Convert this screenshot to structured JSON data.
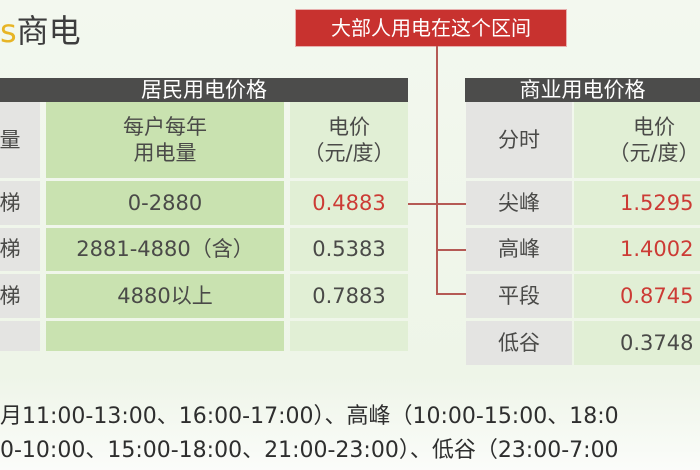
{
  "title": {
    "prefix": "s",
    "main": "商电"
  },
  "callout": "大部人用电在这个区间",
  "residential": {
    "title": "居民用电价格",
    "headers": [
      "量",
      "每户每年\n用电量",
      "电价\n（元/度）"
    ],
    "rows": [
      {
        "tier": "梯",
        "range": "0-2880",
        "price": "0.4883",
        "highlight": true
      },
      {
        "tier": "梯",
        "range": "2881-4880（含）",
        "price": "0.5383",
        "highlight": false
      },
      {
        "tier": "梯",
        "range": "4880以上",
        "price": "0.7883",
        "highlight": false
      },
      {
        "tier": "",
        "range": "",
        "price": "",
        "highlight": false
      }
    ]
  },
  "commercial": {
    "title": "商业用电价格",
    "headers": [
      "分时",
      "电价\n（元/度）"
    ],
    "rows": [
      {
        "period": "尖峰",
        "price": "1.5295",
        "highlight": true
      },
      {
        "period": "高峰",
        "price": "1.4002",
        "highlight": true
      },
      {
        "period": "平段",
        "price": "0.8745",
        "highlight": true
      },
      {
        "period": "低谷",
        "price": "0.3748",
        "highlight": false
      }
    ]
  },
  "footer": [
    "月11:00-13:00、16:00-17:00）、高峰（10:00-15:00、18:0",
    "0-10:00、15:00-18:00、21:00-23:00）、低谷（23:00-7:00"
  ],
  "colors": {
    "accent_red": "#c8322f",
    "header_dark": "#4c4c4b",
    "green": "#c9e2b0",
    "logo_yellow": "#e7b526"
  }
}
